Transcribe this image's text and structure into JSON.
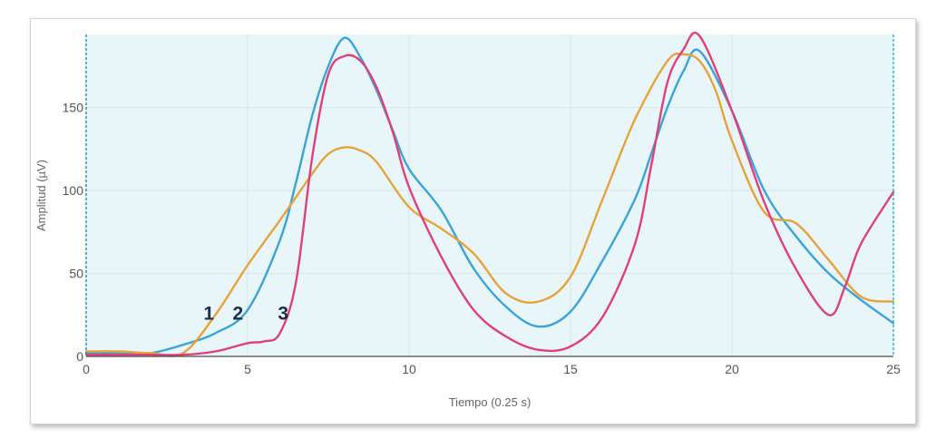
{
  "chart_data": {
    "type": "line",
    "xlabel": "Tiempo (0.25 s)",
    "ylabel": "Amplitud (µV)",
    "xlim": [
      0,
      25
    ],
    "ylim": [
      0,
      194
    ],
    "x_ticks": [
      0,
      5,
      10,
      15,
      20,
      25
    ],
    "y_ticks": [
      0,
      50,
      100,
      150
    ],
    "grid": true,
    "plot_background": "#e8f6fa",
    "series_tags": [
      "1",
      "2",
      "3"
    ],
    "series": [
      {
        "color": "#3aa3d9",
        "x": [
          0,
          1,
          2,
          3,
          4,
          5,
          6,
          6.5,
          7,
          7.5,
          8,
          8.5,
          9,
          9.5,
          10,
          11,
          12,
          13,
          14,
          15,
          16,
          17,
          17.5,
          18,
          18.5,
          19,
          20,
          21,
          22,
          23,
          24,
          25
        ],
        "y": [
          2,
          2,
          2,
          7,
          14,
          28,
          70,
          105,
          145,
          175,
          192,
          180,
          160,
          136,
          113,
          88,
          53,
          30,
          18,
          27,
          58,
          95,
          122,
          150,
          172,
          184,
          148,
          100,
          72,
          50,
          34,
          20
        ]
      },
      {
        "color": "#e8a23a",
        "x": [
          0,
          1,
          2,
          3,
          4,
          5,
          6,
          7,
          7.5,
          8,
          8.5,
          9,
          10,
          11,
          12,
          13,
          14,
          15,
          16,
          17,
          18,
          18.5,
          19,
          19.5,
          20,
          21,
          22,
          23,
          24,
          25
        ],
        "y": [
          3,
          3,
          2,
          2,
          25,
          55,
          82,
          110,
          122,
          126,
          124,
          117,
          90,
          77,
          62,
          38,
          33,
          48,
          95,
          143,
          178,
          182,
          178,
          160,
          130,
          87,
          80,
          58,
          36,
          33
        ]
      },
      {
        "color": "#e0407a",
        "x": [
          0,
          1,
          2,
          3,
          4,
          5,
          5.5,
          6,
          6.5,
          7,
          7.5,
          8,
          8.5,
          9,
          9.5,
          10,
          11,
          12,
          13,
          14,
          15,
          16,
          17,
          17.5,
          18,
          18.5,
          19,
          20,
          21,
          22,
          23,
          23.5,
          24,
          25
        ],
        "y": [
          1,
          1,
          1,
          1,
          3,
          8,
          9,
          14,
          45,
          120,
          170,
          181,
          178,
          162,
          135,
          102,
          60,
          28,
          12,
          4,
          6,
          24,
          68,
          115,
          165,
          185,
          193,
          148,
          93,
          52,
          25,
          42,
          68,
          99
        ]
      }
    ]
  }
}
